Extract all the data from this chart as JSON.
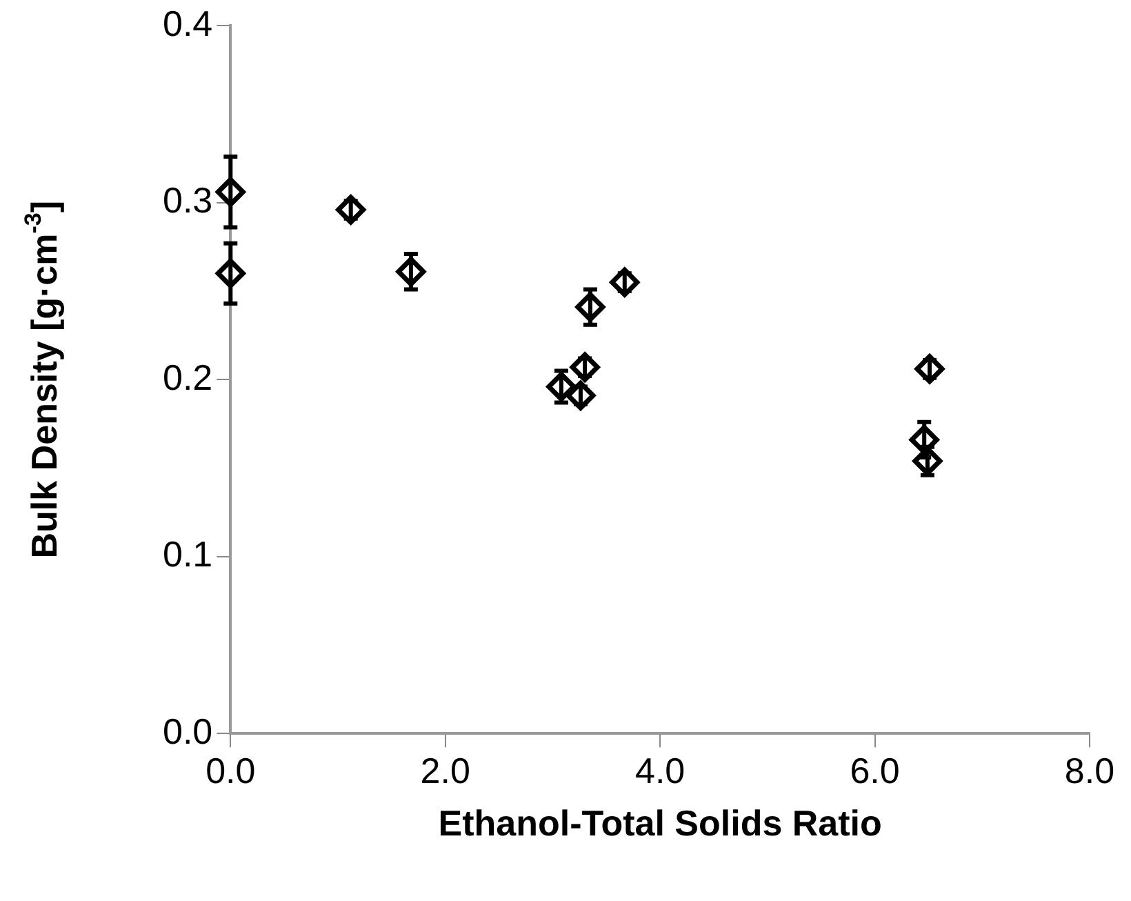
{
  "chart_data": {
    "type": "scatter",
    "xlabel": "Ethanol-Total Solids Ratio",
    "ylabel": "Bulk Density [g·cm$^{-3}$]",
    "x": [
      0,
      0,
      1.12,
      1.68,
      3.08,
      3.26,
      3.3,
      3.35,
      3.67,
      6.51,
      6.46,
      6.49
    ],
    "series": [
      {
        "color": "#000000",
        "values": [
          0.306,
          0.26,
          0.296,
          0.261,
          0.196,
          0.191,
          0.207,
          0.241,
          0.255,
          0.206,
          0.166,
          0.154
        ],
        "errors": [
          0.02,
          0.017,
          0.005,
          0.01,
          0.009,
          0.005,
          0.005,
          0.01,
          0.005,
          0.005,
          0.01,
          0.008
        ]
      }
    ],
    "xlim": [
      0,
      8
    ],
    "xticks": [
      {
        "value": 0,
        "label": "0.0"
      },
      {
        "value": 2,
        "label": "2.0"
      },
      {
        "value": 4,
        "label": "4.0"
      },
      {
        "value": 6,
        "label": "6.0"
      },
      {
        "value": 8,
        "label": "8.0"
      }
    ],
    "ylim": [
      0,
      0.4
    ],
    "yticks": [
      {
        "value": 0,
        "label": "0.0"
      },
      {
        "value": 0.1,
        "label": "0.1"
      },
      {
        "value": 0.2,
        "label": "0.2"
      },
      {
        "value": 0.3,
        "label": "0.3"
      },
      {
        "value": 0.4,
        "label": "0.4"
      }
    ],
    "grid": false,
    "legend": false,
    "marker": "diamond"
  }
}
